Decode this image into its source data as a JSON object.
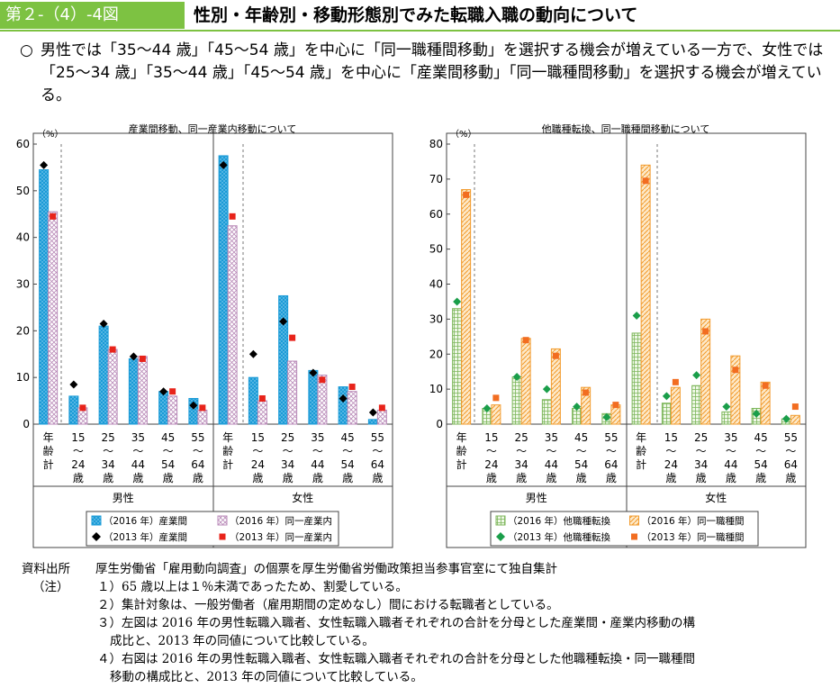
{
  "header": {
    "label": "第２-（4）-4図",
    "title": "性別・年齢別・移動形態別でみた転職入職の動向について"
  },
  "summary": {
    "mark": "○",
    "text": "男性では「35～44 歳」「45～54 歳」を中心に「同一職種間移動」を選択する機会が増えている一方で、女性では「25～34 歳」「35～44 歳」「45～54 歳」を中心に「産業間移動」「同一職種間移動」を選択する機会が増えている。"
  },
  "colors": {
    "accent": "#7dc242",
    "blue": "#1a9bd7",
    "pinkHatch": "#b98ab8",
    "green": "#7cb65a",
    "orange": "#f29b2d",
    "black": "#000000",
    "red": "#e8231a",
    "darkGreen": "#1a9e4a",
    "orangeMarker": "#f26d21"
  },
  "chart_data": [
    {
      "type": "bar",
      "title": "産業間移動、同一産業内移動について",
      "ylabel": "（%）",
      "ylim": [
        0,
        60
      ],
      "yticks": [
        0,
        10,
        20,
        30,
        40,
        50,
        60
      ],
      "groups": [
        "男性",
        "女性"
      ],
      "categories": [
        "年齢計",
        "15～24歳",
        "25～34歳",
        "35～44歳",
        "45～54歳",
        "55～64歳"
      ],
      "category_labels": [
        [
          "年",
          "齢",
          "計"
        ],
        [
          "15",
          "～",
          "24",
          "歳"
        ],
        [
          "25",
          "～",
          "34",
          "歳"
        ],
        [
          "35",
          "～",
          "44",
          "歳"
        ],
        [
          "45",
          "～",
          "54",
          "歳"
        ],
        [
          "55",
          "～",
          "64",
          "歳"
        ]
      ],
      "series": [
        {
          "name": "（2016 年）産業間",
          "kind": "bar",
          "group": "男性",
          "values": [
            54.5,
            6,
            21,
            14,
            7,
            5.5
          ]
        },
        {
          "name": "（2016 年）同一産業内",
          "kind": "bar",
          "group": "男性",
          "values": [
            45.5,
            3.5,
            16,
            14.5,
            6,
            3
          ]
        },
        {
          "name": "（2013 年）産業間",
          "kind": "marker",
          "group": "男性",
          "values": [
            55.5,
            8.5,
            21.5,
            14.5,
            7,
            4
          ]
        },
        {
          "name": "（2013 年）同一産業内",
          "kind": "marker",
          "group": "男性",
          "values": [
            44.5,
            3.5,
            16,
            14,
            7,
            3.5
          ]
        },
        {
          "name": "（2016 年）産業間",
          "kind": "bar",
          "group": "女性",
          "values": [
            57.5,
            10,
            27.5,
            11.5,
            8,
            1
          ]
        },
        {
          "name": "（2016 年）同一産業内",
          "kind": "bar",
          "group": "女性",
          "values": [
            42.5,
            5,
            13.5,
            10.5,
            7,
            3
          ]
        },
        {
          "name": "（2013 年）産業間",
          "kind": "marker",
          "group": "女性",
          "values": [
            55.5,
            15,
            22,
            11,
            5.5,
            2.5
          ]
        },
        {
          "name": "（2013 年）同一産業内",
          "kind": "marker",
          "group": "女性",
          "values": [
            44.5,
            5.5,
            18.5,
            9.5,
            8,
            3.5
          ]
        }
      ],
      "legend": [
        "（2016 年）産業間",
        "（2016 年）同一産業内",
        "（2013 年）産業間",
        "（2013 年）同一産業内"
      ]
    },
    {
      "type": "bar",
      "title": "他職種転換、同一職種間移動について",
      "ylabel": "（%）",
      "ylim": [
        0,
        80
      ],
      "yticks": [
        0,
        10,
        20,
        30,
        40,
        50,
        60,
        70,
        80
      ],
      "groups": [
        "男性",
        "女性"
      ],
      "categories": [
        "年齢計",
        "15～24歳",
        "25～34歳",
        "35～44歳",
        "45～54歳",
        "55～64歳"
      ],
      "category_labels": [
        [
          "年",
          "齢",
          "計"
        ],
        [
          "15",
          "～",
          "24",
          "歳"
        ],
        [
          "25",
          "～",
          "34",
          "歳"
        ],
        [
          "35",
          "～",
          "44",
          "歳"
        ],
        [
          "45",
          "～",
          "54",
          "歳"
        ],
        [
          "55",
          "～",
          "64",
          "歳"
        ]
      ],
      "series": [
        {
          "name": "（2016 年）他職種転換",
          "kind": "bar",
          "group": "男性",
          "values": [
            33,
            4.5,
            13.5,
            7,
            4.5,
            3
          ]
        },
        {
          "name": "（2016 年）同一職種間",
          "kind": "bar",
          "group": "男性",
          "values": [
            67,
            5.5,
            24.5,
            21.5,
            10.5,
            5.5
          ]
        },
        {
          "name": "（2013 年）他職種転換",
          "kind": "marker",
          "group": "男性",
          "values": [
            35,
            4.5,
            13.5,
            10,
            5,
            2
          ]
        },
        {
          "name": "（2013 年）同一職種間",
          "kind": "marker",
          "group": "男性",
          "values": [
            65.5,
            7.5,
            24,
            19.5,
            9,
            5.5
          ]
        },
        {
          "name": "（2016 年）他職種転換",
          "kind": "bar",
          "group": "女性",
          "values": [
            26,
            6,
            11,
            3.5,
            4.5,
            1.5
          ]
        },
        {
          "name": "（2016 年）同一職種間",
          "kind": "bar",
          "group": "女性",
          "values": [
            74,
            10.5,
            30,
            19.5,
            12,
            2.5
          ]
        },
        {
          "name": "（2013 年）他職種転換",
          "kind": "marker",
          "group": "女性",
          "values": [
            31,
            8,
            14,
            5,
            3,
            1.5
          ]
        },
        {
          "name": "（2013 年）同一職種間",
          "kind": "marker",
          "group": "女性",
          "values": [
            69.5,
            12,
            26.5,
            15.5,
            11,
            5
          ]
        }
      ],
      "legend": [
        "（2016 年）他職種転換",
        "（2016 年）同一職種間",
        "（2013 年）他職種転換",
        "（2013 年）同一職種間"
      ]
    }
  ],
  "notes": {
    "source_label": "資料出所",
    "source": "厚生労働省「雇用動向調査」の個票を厚生労働省労働政策担当参事官室にて独自集計",
    "note_label": "（注）",
    "items": [
      "１）65 歳以上は１％未満であったため、割愛している。",
      "２）集計対象は、一般労働者（雇用期間の定めなし）間における転職者としている。",
      "３）左図は 2016 年の男性転職入職者、女性転職入職者それぞれの合計を分母とした産業間・産業内移動の構",
      "成比と、2013 年の同値について比較している。",
      "４）右図は 2016 年の男性転職入職者、女性転職入職者それぞれの合計を分母とした他職種転換・同一職種間",
      "移動の構成比と、2013 年の同値について比較している。"
    ]
  }
}
